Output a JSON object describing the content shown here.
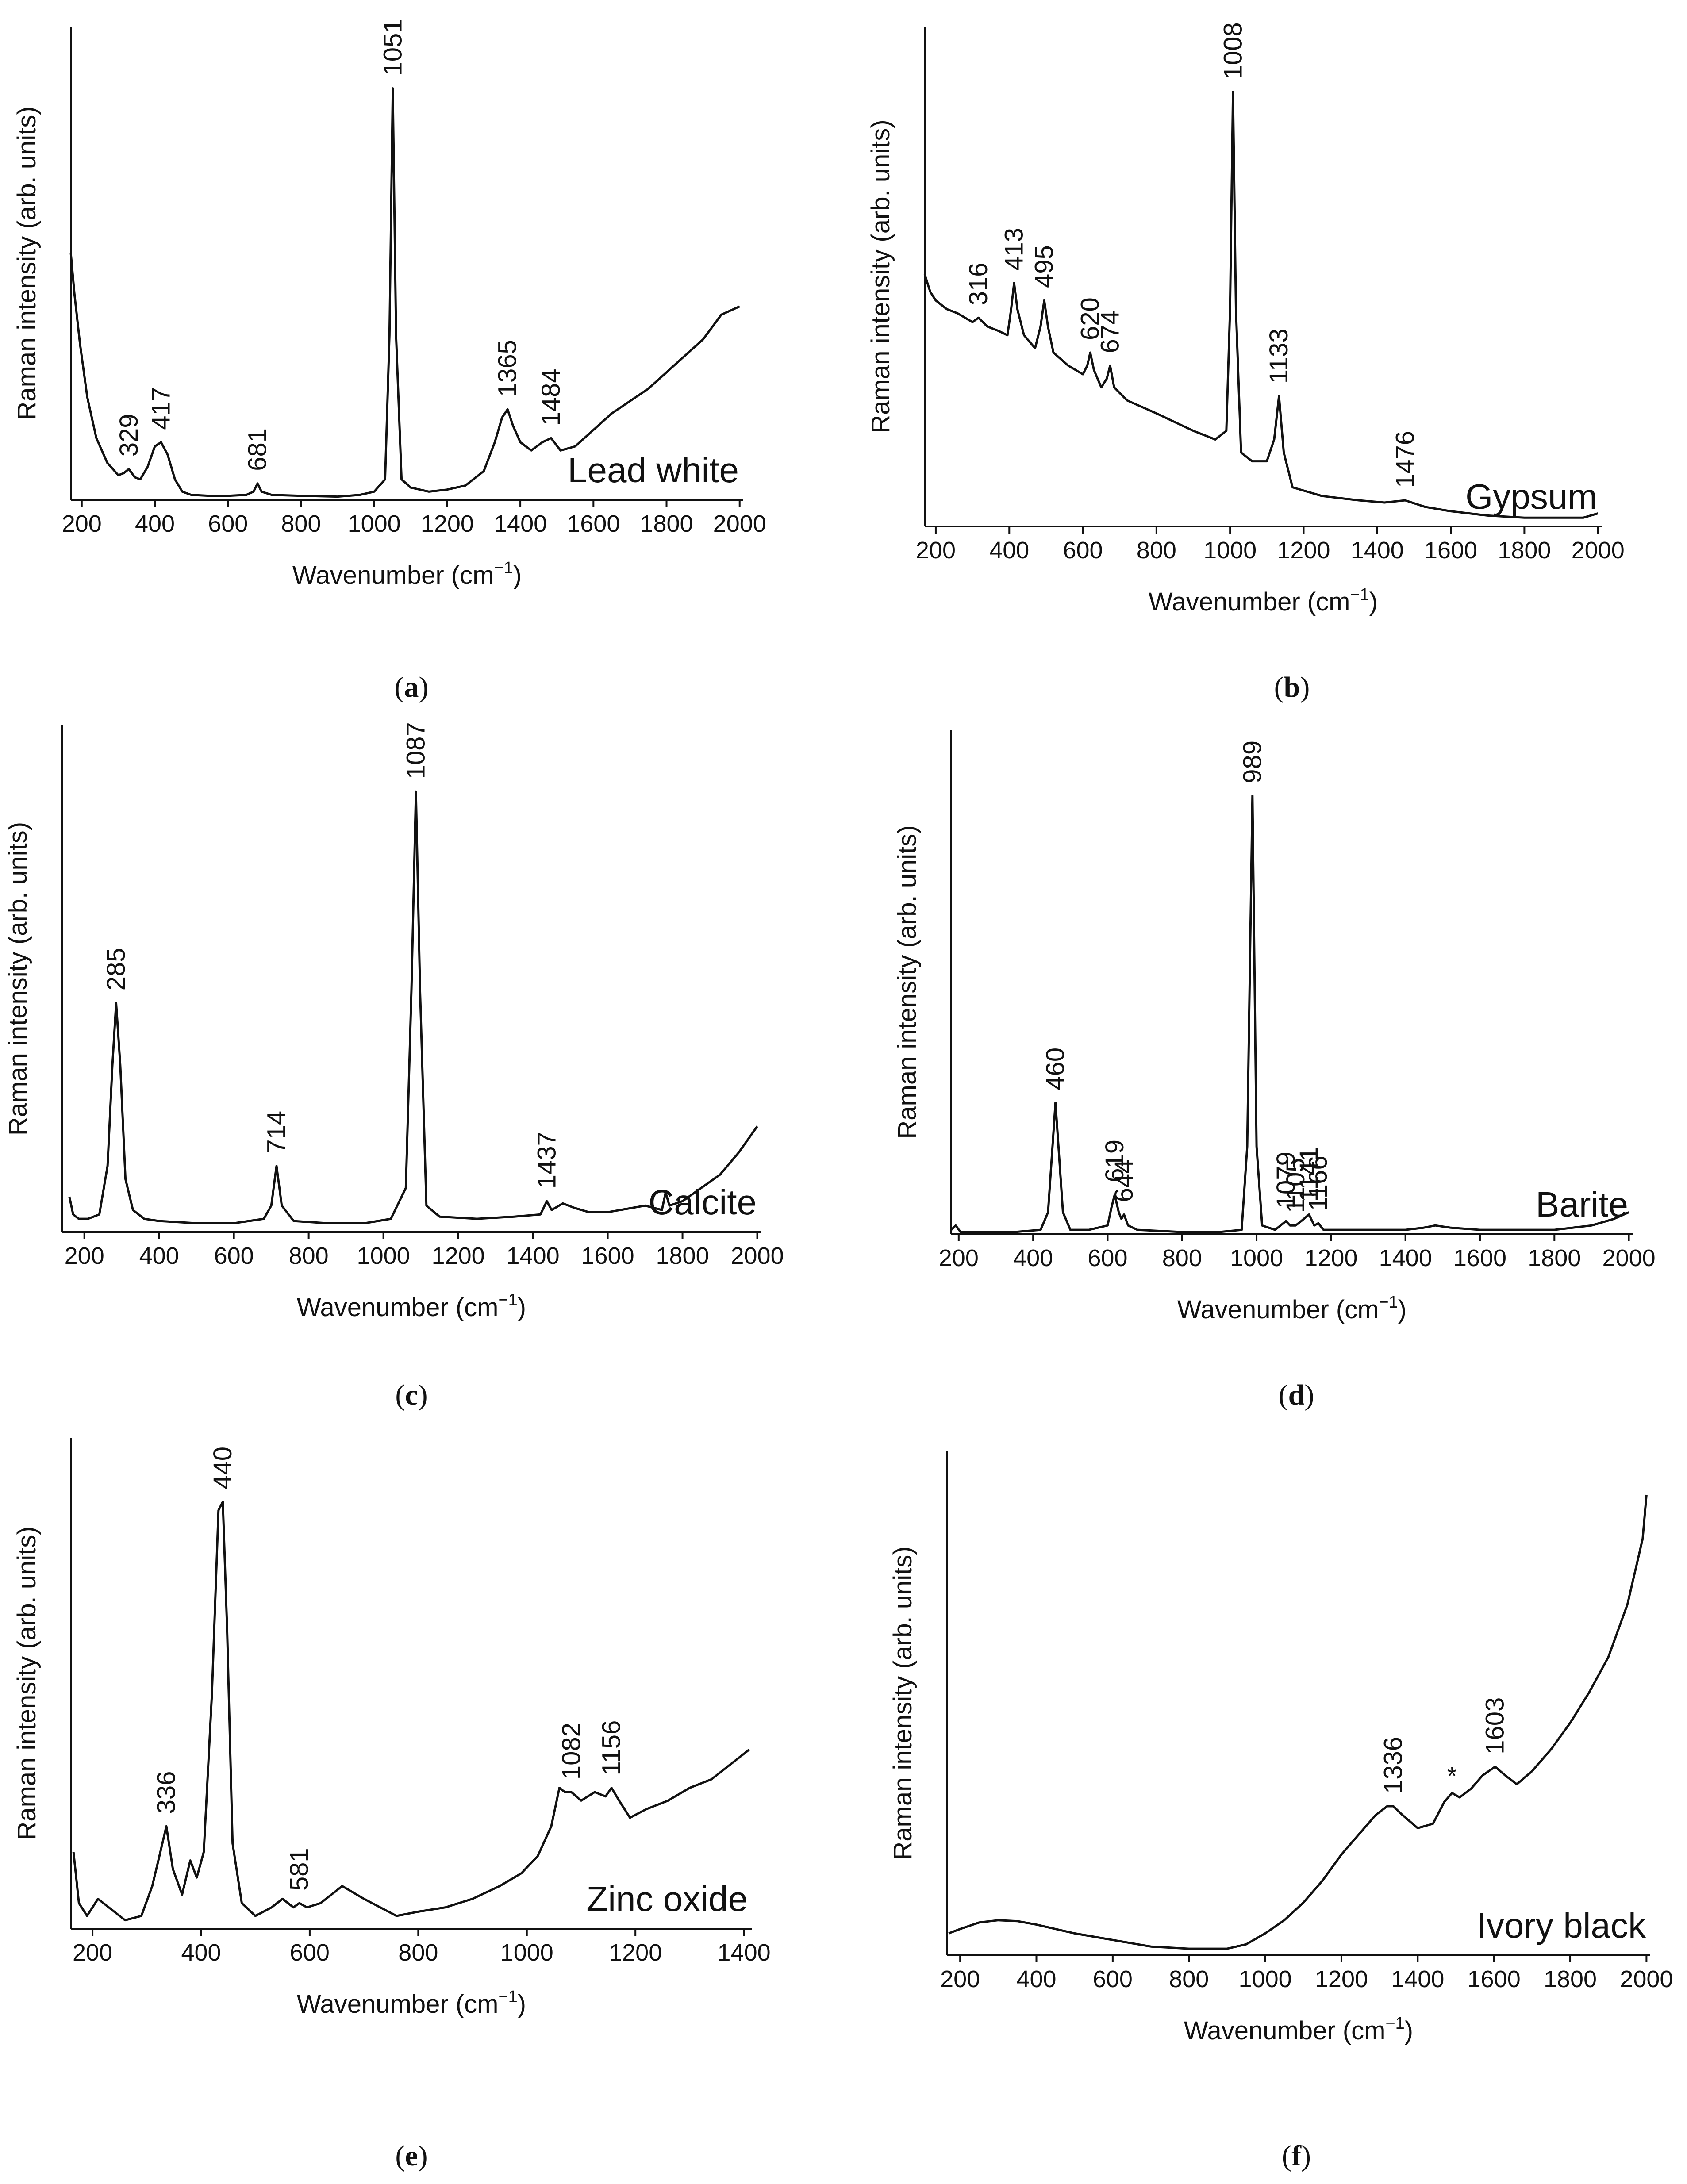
{
  "figure": {
    "colors": {
      "line": "#111111",
      "background": "#ffffff"
    }
  },
  "chart_data": [
    {
      "type": "line",
      "panel": "(a)",
      "caption_letter": "a",
      "title": "Lead white",
      "xlabel": "Wavenumber (cm−1)",
      "xlabel_main": "Wavenumber (cm",
      "xlabel_sup": "−1",
      "xlabel_close": ")",
      "ylabel": "Raman intensity (arb. units)",
      "xlim": [
        170,
        2010
      ],
      "ylim": [
        0,
        1.15
      ],
      "xticks": [
        200,
        400,
        600,
        800,
        1000,
        1200,
        1400,
        1600,
        1800,
        2000
      ],
      "series": [
        {
          "name": "Lead white",
          "x": [
            170,
            180,
            195,
            215,
            240,
            270,
            300,
            315,
            329,
            345,
            360,
            380,
            400,
            417,
            435,
            455,
            475,
            500,
            550,
            600,
            650,
            670,
            681,
            692,
            720,
            800,
            900,
            960,
            1000,
            1030,
            1042,
            1051,
            1060,
            1075,
            1100,
            1150,
            1200,
            1250,
            1300,
            1330,
            1350,
            1365,
            1380,
            1400,
            1430,
            1460,
            1484,
            1510,
            1550,
            1600,
            1650,
            1700,
            1750,
            1800,
            1850,
            1900,
            1950,
            2000
          ],
          "y": [
            0.6,
            0.5,
            0.38,
            0.25,
            0.15,
            0.09,
            0.06,
            0.065,
            0.075,
            0.055,
            0.05,
            0.08,
            0.13,
            0.14,
            0.11,
            0.05,
            0.02,
            0.012,
            0.01,
            0.01,
            0.012,
            0.02,
            0.04,
            0.02,
            0.012,
            0.01,
            0.008,
            0.012,
            0.02,
            0.05,
            0.4,
            1.0,
            0.4,
            0.05,
            0.03,
            0.02,
            0.025,
            0.035,
            0.07,
            0.14,
            0.2,
            0.22,
            0.18,
            0.14,
            0.12,
            0.14,
            0.15,
            0.12,
            0.13,
            0.17,
            0.21,
            0.24,
            0.27,
            0.31,
            0.35,
            0.39,
            0.45,
            0.47
          ]
        }
      ],
      "annotations": [
        {
          "x": 329,
          "label": "329",
          "y": 0.075
        },
        {
          "x": 417,
          "label": "417",
          "y": 0.14
        },
        {
          "x": 681,
          "label": "681",
          "y": 0.04
        },
        {
          "x": 1051,
          "label": "1051",
          "y": 1.0
        },
        {
          "x": 1365,
          "label": "1365",
          "y": 0.22
        },
        {
          "x": 1484,
          "label": "1484",
          "y": 0.15
        }
      ]
    },
    {
      "type": "line",
      "panel": "(b)",
      "caption_letter": "b",
      "title": "Gypsum",
      "xlabel": "Wavenumber (cm−1)",
      "xlabel_main": "Wavenumber (cm",
      "xlabel_sup": "−1",
      "xlabel_close": ")",
      "ylabel": "Raman intensity (arb. units)",
      "xlim": [
        170,
        2010
      ],
      "ylim": [
        0,
        1.15
      ],
      "xticks": [
        200,
        400,
        600,
        800,
        1000,
        1200,
        1400,
        1600,
        1800,
        2000
      ],
      "series": [
        {
          "name": "Gypsum",
          "x": [
            170,
            185,
            200,
            230,
            260,
            300,
            316,
            340,
            370,
            395,
            405,
            413,
            422,
            440,
            470,
            485,
            495,
            505,
            520,
            560,
            600,
            612,
            620,
            630,
            650,
            665,
            674,
            685,
            720,
            800,
            900,
            960,
            990,
            1000,
            1008,
            1016,
            1030,
            1060,
            1100,
            1120,
            1133,
            1146,
            1170,
            1250,
            1350,
            1420,
            1476,
            1530,
            1600,
            1700,
            1800,
            1900,
            1960,
            2000
          ],
          "y": [
            0.58,
            0.54,
            0.52,
            0.5,
            0.49,
            0.47,
            0.48,
            0.46,
            0.45,
            0.44,
            0.5,
            0.56,
            0.5,
            0.44,
            0.41,
            0.46,
            0.52,
            0.46,
            0.4,
            0.37,
            0.35,
            0.37,
            0.4,
            0.36,
            0.32,
            0.34,
            0.37,
            0.32,
            0.29,
            0.26,
            0.22,
            0.2,
            0.22,
            0.5,
            1.0,
            0.5,
            0.17,
            0.15,
            0.15,
            0.2,
            0.3,
            0.17,
            0.09,
            0.07,
            0.06,
            0.055,
            0.06,
            0.045,
            0.035,
            0.025,
            0.02,
            0.02,
            0.02,
            0.03
          ]
        }
      ],
      "annotations": [
        {
          "x": 316,
          "label": "316",
          "y": 0.48
        },
        {
          "x": 413,
          "label": "413",
          "y": 0.56
        },
        {
          "x": 495,
          "label": "495",
          "y": 0.52
        },
        {
          "x": 620,
          "label": "620",
          "y": 0.4
        },
        {
          "x": 674,
          "label": "674",
          "y": 0.37
        },
        {
          "x": 1008,
          "label": "1008",
          "y": 1.0
        },
        {
          "x": 1133,
          "label": "1133",
          "y": 0.3
        },
        {
          "x": 1476,
          "label": "1476",
          "y": 0.06
        }
      ]
    },
    {
      "type": "line",
      "panel": "(c)",
      "caption_letter": "c",
      "title": "Calcite",
      "xlabel": "Wavenumber (cm−1)",
      "xlabel_main": "Wavenumber (cm",
      "xlabel_sup": "−1",
      "xlabel_close": ")",
      "ylabel": "Raman intensity (arb. units)",
      "xlim": [
        140,
        2010
      ],
      "ylim": [
        0,
        1.15
      ],
      "xticks": [
        200,
        400,
        600,
        800,
        1000,
        1200,
        1400,
        1600,
        1800,
        2000
      ],
      "series": [
        {
          "name": "Calcite",
          "x": [
            160,
            170,
            185,
            210,
            240,
            262,
            275,
            285,
            296,
            310,
            330,
            360,
            400,
            500,
            600,
            680,
            700,
            714,
            728,
            760,
            850,
            950,
            1020,
            1060,
            1075,
            1087,
            1098,
            1115,
            1150,
            1250,
            1350,
            1420,
            1437,
            1450,
            1480,
            1510,
            1550,
            1600,
            1700,
            1745,
            1755,
            1765,
            1800,
            1850,
            1900,
            1950,
            2000
          ],
          "y": [
            0.08,
            0.04,
            0.03,
            0.03,
            0.04,
            0.15,
            0.38,
            0.52,
            0.38,
            0.12,
            0.05,
            0.03,
            0.025,
            0.02,
            0.02,
            0.03,
            0.06,
            0.15,
            0.06,
            0.025,
            0.02,
            0.02,
            0.03,
            0.1,
            0.55,
            1.0,
            0.55,
            0.06,
            0.035,
            0.03,
            0.035,
            0.04,
            0.07,
            0.05,
            0.065,
            0.055,
            0.045,
            0.045,
            0.06,
            0.05,
            0.09,
            0.06,
            0.07,
            0.1,
            0.13,
            0.18,
            0.24
          ]
        }
      ],
      "annotations": [
        {
          "x": 285,
          "label": "285",
          "y": 0.52
        },
        {
          "x": 714,
          "label": "714",
          "y": 0.15
        },
        {
          "x": 1087,
          "label": "1087",
          "y": 1.0
        },
        {
          "x": 1437,
          "label": "1437",
          "y": 0.07
        }
      ]
    },
    {
      "type": "line",
      "panel": "(d)",
      "caption_letter": "d",
      "title": "Barite",
      "xlabel": "Wavenumber (cm−1)",
      "xlabel_main": "Wavenumber (cm",
      "xlabel_sup": "−1",
      "xlabel_close": ")",
      "ylabel": "Raman intensity (arb. units)",
      "xlim": [
        180,
        2010
      ],
      "ylim": [
        0,
        1.15
      ],
      "xticks": [
        200,
        400,
        600,
        800,
        1000,
        1200,
        1400,
        1600,
        1800,
        2000
      ],
      "series": [
        {
          "name": "Barite",
          "x": [
            180,
            192,
            205,
            260,
            350,
            420,
            440,
            452,
            460,
            468,
            480,
            500,
            550,
            600,
            610,
            619,
            630,
            637,
            644,
            655,
            680,
            800,
            900,
            960,
            975,
            989,
            1000,
            1015,
            1050,
            1079,
            1090,
            1105,
            1120,
            1141,
            1155,
            1166,
            1180,
            1250,
            1400,
            1450,
            1480,
            1520,
            1600,
            1800,
            1900,
            1960,
            2000
          ],
          "y": [
            0.01,
            0.02,
            0.005,
            0.005,
            0.005,
            0.01,
            0.05,
            0.2,
            0.3,
            0.2,
            0.05,
            0.01,
            0.01,
            0.02,
            0.06,
            0.09,
            0.05,
            0.035,
            0.045,
            0.02,
            0.01,
            0.005,
            0.005,
            0.01,
            0.2,
            1.0,
            0.2,
            0.02,
            0.01,
            0.03,
            0.02,
            0.02,
            0.03,
            0.045,
            0.02,
            0.025,
            0.01,
            0.01,
            0.01,
            0.015,
            0.02,
            0.015,
            0.01,
            0.01,
            0.02,
            0.035,
            0.05
          ]
        }
      ],
      "annotations": [
        {
          "x": 460,
          "label": "460",
          "y": 0.3
        },
        {
          "x": 619,
          "label": "619",
          "y": 0.09
        },
        {
          "x": 644,
          "label": "644",
          "y": 0.045
        },
        {
          "x": 989,
          "label": "989",
          "y": 1.0
        },
        {
          "x": 1079,
          "label": "1079",
          "y": 0.03
        },
        {
          "x": 1105,
          "label": "1105",
          "y": 0.02
        },
        {
          "x": 1141,
          "label": "1141",
          "y": 0.045
        },
        {
          "x": 1166,
          "label": "1166",
          "y": 0.025
        }
      ]
    },
    {
      "type": "line",
      "panel": "(e)",
      "caption_letter": "e",
      "title": "Zinc oxide",
      "xlabel": "Wavenumber (cm−1)",
      "xlabel_main": "Wavenumber (cm",
      "xlabel_sup": "−1",
      "xlabel_close": ")",
      "ylabel": "Raman intensity (arb. units)",
      "xlim": [
        160,
        1415
      ],
      "ylim": [
        0,
        1.15
      ],
      "xticks": [
        200,
        400,
        600,
        800,
        1000,
        1200,
        1400
      ],
      "series": [
        {
          "name": "Zinc oxide",
          "x": [
            165,
            175,
            190,
            210,
            230,
            260,
            290,
            310,
            325,
            336,
            348,
            365,
            380,
            392,
            405,
            420,
            432,
            440,
            448,
            458,
            475,
            500,
            530,
            550,
            570,
            581,
            595,
            620,
            660,
            700,
            760,
            800,
            850,
            900,
            950,
            990,
            1020,
            1045,
            1060,
            1070,
            1082,
            1100,
            1125,
            1145,
            1156,
            1170,
            1190,
            1220,
            1260,
            1300,
            1340,
            1380,
            1410
          ],
          "y": [
            0.18,
            0.06,
            0.03,
            0.07,
            0.05,
            0.02,
            0.03,
            0.1,
            0.18,
            0.24,
            0.14,
            0.08,
            0.16,
            0.12,
            0.18,
            0.55,
            0.98,
            1.0,
            0.7,
            0.2,
            0.06,
            0.03,
            0.05,
            0.07,
            0.05,
            0.06,
            0.05,
            0.06,
            0.1,
            0.07,
            0.03,
            0.04,
            0.05,
            0.07,
            0.1,
            0.13,
            0.17,
            0.24,
            0.33,
            0.32,
            0.32,
            0.3,
            0.32,
            0.31,
            0.33,
            0.3,
            0.26,
            0.28,
            0.3,
            0.33,
            0.35,
            0.39,
            0.42
          ]
        }
      ],
      "annotations": [
        {
          "x": 336,
          "label": "336",
          "y": 0.24
        },
        {
          "x": 440,
          "label": "440",
          "y": 1.0
        },
        {
          "x": 581,
          "label": "581",
          "y": 0.06
        },
        {
          "x": 1082,
          "label": "1082",
          "y": 0.32
        },
        {
          "x": 1156,
          "label": "1156",
          "y": 0.33
        }
      ]
    },
    {
      "type": "line",
      "panel": "(f)",
      "caption_letter": "f",
      "title": "Ivory black",
      "xlabel": "Wavenumber (cm−1)",
      "xlabel_main": "Wavenumber (cm",
      "xlabel_sup": "−1",
      "xlabel_close": ")",
      "ylabel": "Raman intensity (arb. units)",
      "xlim": [
        165,
        2010
      ],
      "ylim": [
        0,
        1.15
      ],
      "xticks": [
        200,
        400,
        600,
        800,
        1000,
        1200,
        1400,
        1600,
        1800,
        2000
      ],
      "series": [
        {
          "name": "Ivory black",
          "x": [
            170,
            200,
            250,
            300,
            350,
            400,
            500,
            600,
            700,
            800,
            900,
            950,
            1000,
            1050,
            1100,
            1150,
            1200,
            1250,
            1290,
            1320,
            1336,
            1360,
            1400,
            1440,
            1470,
            1490,
            1510,
            1540,
            1570,
            1603,
            1630,
            1660,
            1700,
            1750,
            1800,
            1850,
            1900,
            1950,
            1990,
            2000
          ],
          "y": [
            0.05,
            0.06,
            0.075,
            0.08,
            0.078,
            0.07,
            0.05,
            0.035,
            0.02,
            0.015,
            0.015,
            0.025,
            0.05,
            0.08,
            0.12,
            0.17,
            0.23,
            0.28,
            0.32,
            0.34,
            0.34,
            0.32,
            0.29,
            0.3,
            0.35,
            0.37,
            0.36,
            0.38,
            0.41,
            0.43,
            0.41,
            0.39,
            0.42,
            0.47,
            0.53,
            0.6,
            0.68,
            0.8,
            0.95,
            1.05
          ]
        }
      ],
      "annotations": [
        {
          "x": 1336,
          "label": "1336",
          "y": 0.34
        },
        {
          "x": 1490,
          "label": "*",
          "y": 0.37
        },
        {
          "x": 1603,
          "label": "1603",
          "y": 0.43
        }
      ]
    }
  ]
}
